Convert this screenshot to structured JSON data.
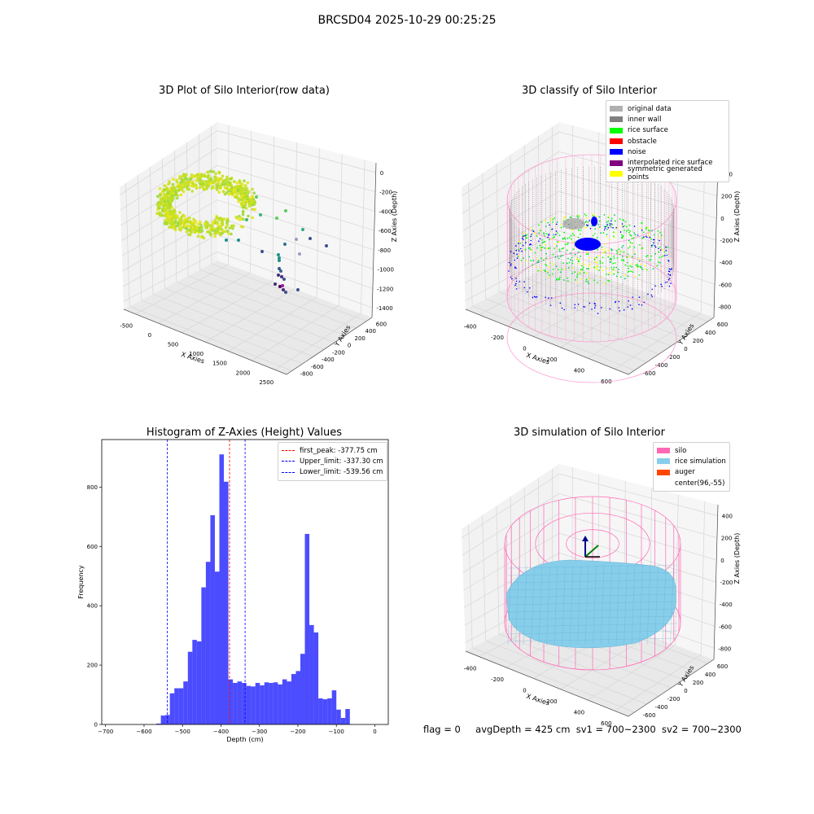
{
  "suptitle": "BRCSD04 2025-10-29 00:25:25",
  "footer": {
    "flag": "flag = 0",
    "avg_depth": "avgDepth = 425 cm",
    "sv1": "sv1 = 700~2300",
    "sv2": "sv2 = 700~2300"
  },
  "panels": {
    "raw": {
      "title": "3D Plot of Silo Interior(row data)",
      "xlabel": "X Axies",
      "ylabel": "Y Axies",
      "zlabel": "Z Axies (Depth)",
      "xticks": [
        "-500",
        "0",
        "500",
        "1000",
        "1500",
        "2000",
        "2500"
      ],
      "yticks": [
        "-800",
        "-600",
        "-400",
        "-200",
        "0",
        "200",
        "400",
        "600"
      ],
      "zticks": [
        "0",
        "-200",
        "-400",
        "-600",
        "-800",
        "-1000",
        "-1200",
        "-1400"
      ]
    },
    "classify": {
      "title": "3D classify of Silo Interior",
      "xlabel": "X Axies",
      "ylabel": "Y Axies",
      "zlabel": "Z Axies (Depth)",
      "xticks": [
        "-400",
        "-200",
        "0",
        "200",
        "400",
        "600"
      ],
      "yticks": [
        "-600",
        "-400",
        "-200",
        "0",
        "200",
        "400",
        "600"
      ],
      "zticks": [
        "400",
        "200",
        "0",
        "-200",
        "-400",
        "-600",
        "-800"
      ],
      "legend": [
        {
          "label": "original data",
          "color": "#b0b0b0"
        },
        {
          "label": "inner wall",
          "color": "#808080"
        },
        {
          "label": "rice surface",
          "color": "#00ff00"
        },
        {
          "label": "obstacle",
          "color": "#ff0000"
        },
        {
          "label": "noise",
          "color": "#0000ff"
        },
        {
          "label": "interpolated rice surface",
          "color": "#800080"
        },
        {
          "label": "symmetric generated points",
          "color": "#ffff00"
        }
      ]
    },
    "simulation": {
      "title": "3D simulation of Silo Interior",
      "xlabel": "X Axies",
      "ylabel": "Y Axies",
      "zlabel": "Z Axies (Depth)",
      "xticks": [
        "-400",
        "-200",
        "0",
        "200",
        "400",
        "600"
      ],
      "yticks": [
        "-600",
        "-400",
        "-200",
        "0",
        "200",
        "400",
        "600"
      ],
      "zticks": [
        "400",
        "200",
        "0",
        "-200",
        "-400",
        "-600",
        "-800"
      ],
      "legend": [
        {
          "label": "silo",
          "color": "#ff69b4"
        },
        {
          "label": "rice simulation",
          "color": "#87ceeb"
        },
        {
          "label": "auger",
          "color": "#ff4500"
        },
        {
          "label": "center(96,-55)",
          "color": ""
        }
      ]
    }
  },
  "chart_data": {
    "type": "bar",
    "title": "Histogram of Z-Axies (Height) Values",
    "xlabel": "Depth (cm)",
    "ylabel": "Frequency",
    "xlim": [
      -710,
      35
    ],
    "ylim": [
      0,
      960
    ],
    "xticks": [
      -700,
      -600,
      -500,
      -400,
      -300,
      -200,
      -100,
      0
    ],
    "yticks": [
      0,
      200,
      400,
      600,
      800
    ],
    "bin_width": 11.7,
    "bin_edges_start": -568,
    "values": [
      3,
      30,
      32,
      105,
      122,
      122,
      145,
      245,
      285,
      280,
      462,
      548,
      705,
      515,
      910,
      818,
      152,
      140,
      145,
      140,
      130,
      128,
      140,
      132,
      142,
      140,
      142,
      135,
      152,
      145,
      170,
      180,
      238,
      642,
      335,
      310,
      88,
      85,
      88,
      115,
      50,
      22,
      52
    ],
    "bar_color": "#0000ff",
    "bar_alpha": 0.7,
    "vlines": [
      {
        "label": "first_peak: -377.75 cm",
        "x": -377.75,
        "color": "#ff0000"
      },
      {
        "label": "Upper_limit: -337.30 cm",
        "x": -337.3,
        "color": "#0000ff"
      },
      {
        "label": "Lower_limit: -539.56 cm",
        "x": -539.56,
        "color": "#0000ff"
      }
    ],
    "legend_position": "top-right",
    "grid": false
  }
}
